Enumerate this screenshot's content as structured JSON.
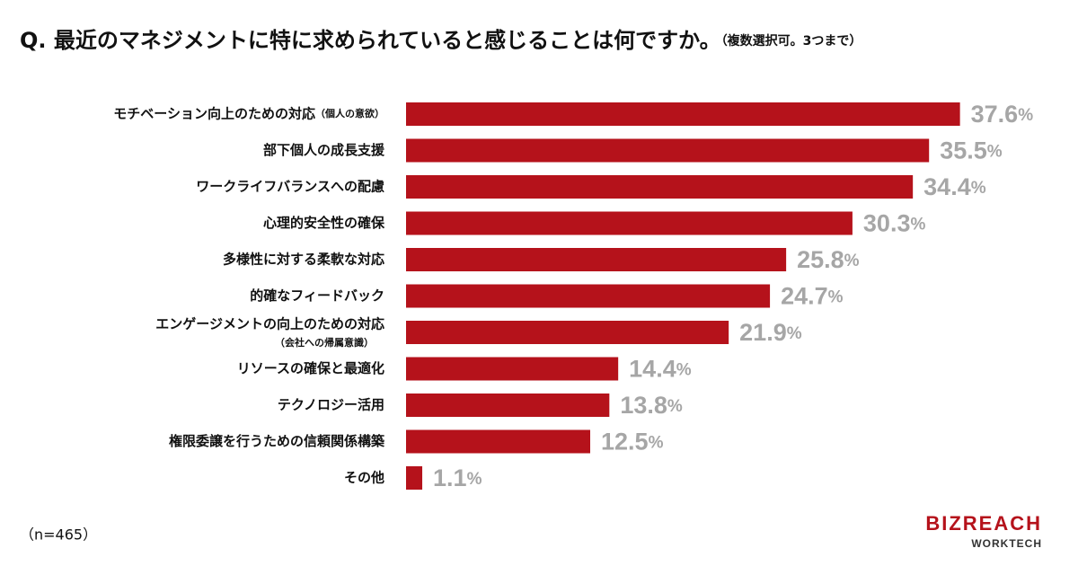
{
  "chart_data": {
    "type": "hbar",
    "title": "Q. 最近のマネジメントに特に求められていると感じることは何ですか。",
    "subtitle": "（複数選択可。3つまで）",
    "categories": [
      "モチベーション向上のための対応",
      "部下個人の成長支援",
      "ワークライフバランスへの配慮",
      "心理的安全性の確保",
      "多様性に対する柔軟な対応",
      "的確なフィードバック",
      "エンゲージメントの向上のための対応",
      "リソースの確保と最適化",
      "テクノロジー活用",
      "権限委譲を行うための信頼関係構築",
      "その他"
    ],
    "category_notes": [
      "（個人の意欲）",
      null,
      null,
      null,
      null,
      null,
      "（会社への帰属意識）",
      null,
      null,
      null,
      null
    ],
    "values": [
      37.6,
      35.5,
      34.4,
      30.3,
      25.8,
      24.7,
      21.9,
      14.4,
      13.8,
      12.5,
      1.1
    ],
    "value_labels": [
      "37.6%",
      "35.5%",
      "34.4%",
      "30.3%",
      "25.8%",
      "24.7%",
      "21.9%",
      "14.4%",
      "13.8%",
      "12.5%",
      "1.1%"
    ],
    "color": "#b5121b",
    "note": "（n=465）",
    "logo": {
      "name": "BIZREACH",
      "sub": "WORKTECH"
    }
  }
}
